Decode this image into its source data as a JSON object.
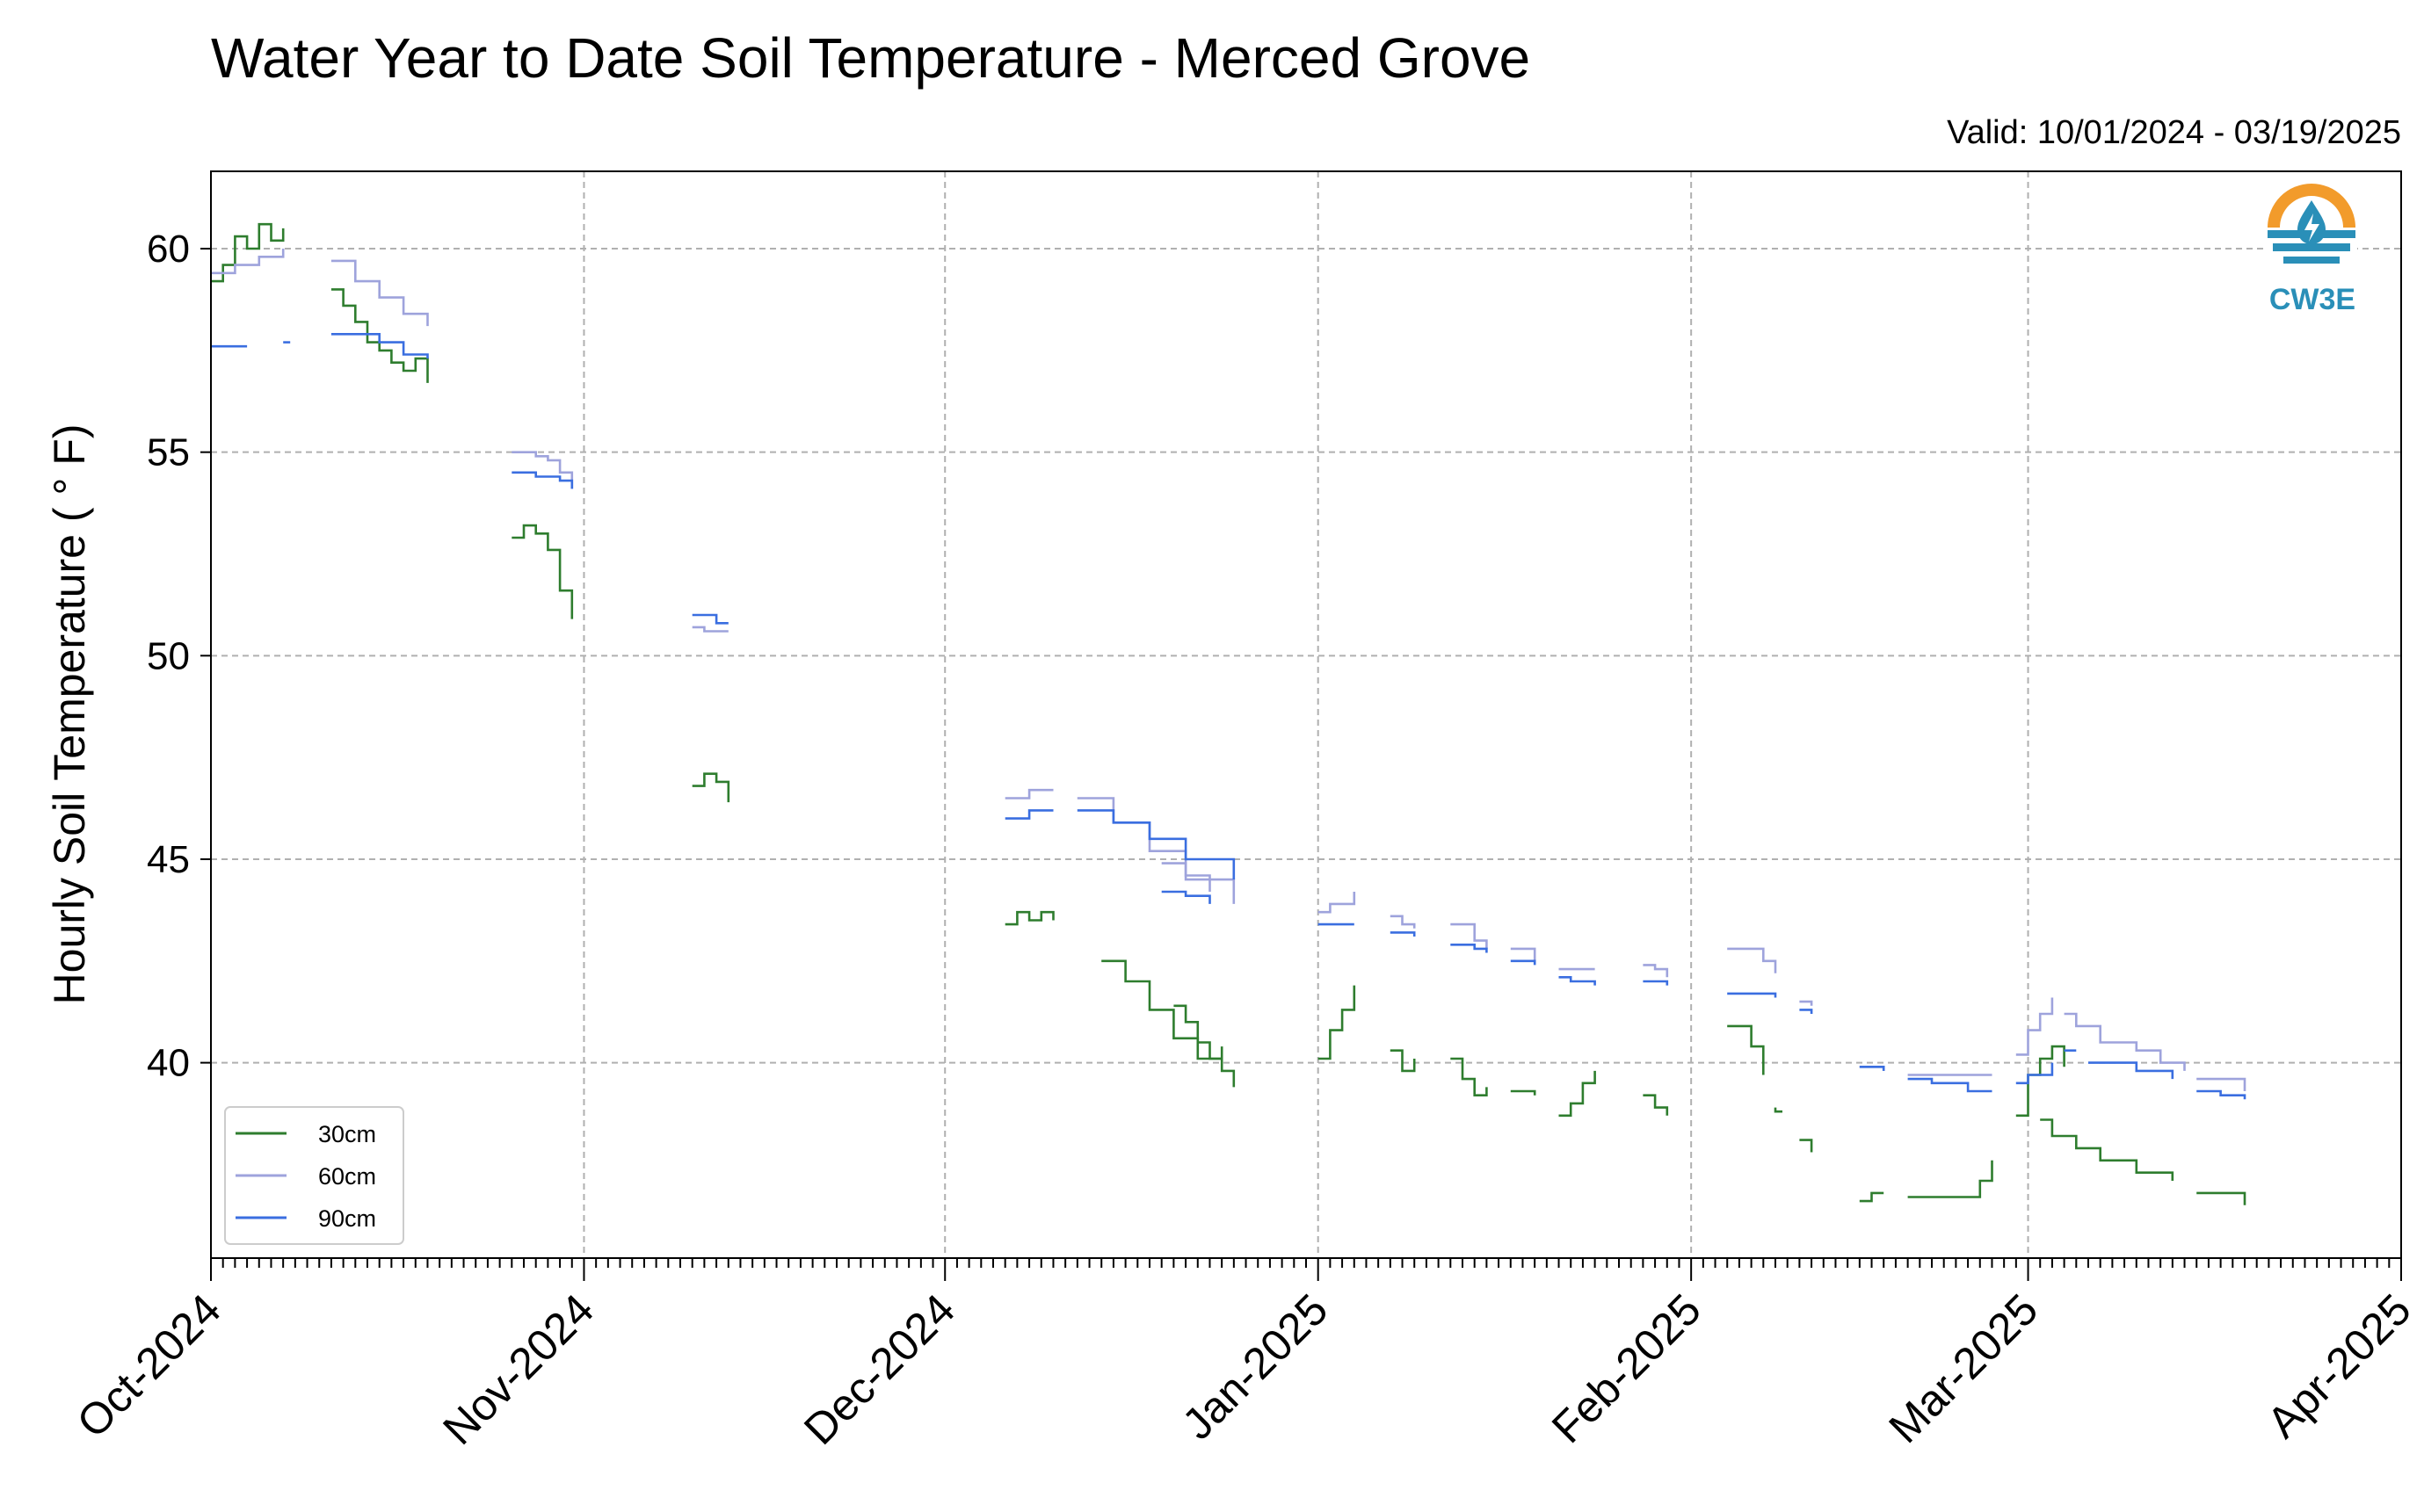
{
  "chart_data": {
    "type": "line",
    "title": "Water Year to Date Soil Temperature - Merced Grove",
    "subtitle": "Valid: 10/01/2024 - 03/19/2025",
    "ylabel": "Hourly Soil Temperature ( ° F)",
    "xlabel": "",
    "ylim": [
      35.2,
      61.9
    ],
    "xlim": [
      "2024-10-01",
      "2025-04-01"
    ],
    "yticks": [
      40,
      45,
      50,
      55,
      60
    ],
    "xticks": [
      "Oct-2024",
      "Nov-2024",
      "Dec-2024",
      "Jan-2025",
      "Feb-2025",
      "Mar-2025",
      "Apr-2025"
    ],
    "grid": true,
    "legend_position": "bottom-left",
    "logo_text": "CW3E",
    "series": [
      {
        "name": "30cm",
        "color": "#2e7d2e",
        "segments": [
          [
            [
              "2024-10-01",
              59.2
            ],
            [
              "2024-10-02",
              59.6
            ],
            [
              "2024-10-03",
              60.3
            ],
            [
              "2024-10-04",
              60.0
            ],
            [
              "2024-10-05",
              60.6
            ],
            [
              "2024-10-06",
              60.2
            ],
            [
              "2024-10-07",
              60.5
            ]
          ],
          [
            [
              "2024-10-11",
              59.0
            ],
            [
              "2024-10-12",
              58.6
            ],
            [
              "2024-10-13",
              58.2
            ],
            [
              "2024-10-14",
              57.7
            ],
            [
              "2024-10-15",
              57.5
            ],
            [
              "2024-10-16",
              57.2
            ],
            [
              "2024-10-17",
              57.0
            ],
            [
              "2024-10-18",
              57.3
            ],
            [
              "2024-10-19",
              56.7
            ]
          ],
          [
            [
              "2024-10-26",
              52.9
            ],
            [
              "2024-10-27",
              53.2
            ],
            [
              "2024-10-28",
              53.0
            ],
            [
              "2024-10-29",
              52.6
            ],
            [
              "2024-10-30",
              51.6
            ],
            [
              "2024-10-31",
              50.9
            ]
          ],
          [
            [
              "2024-11-10",
              46.8
            ],
            [
              "2024-11-11",
              47.1
            ],
            [
              "2024-11-12",
              46.9
            ],
            [
              "2024-11-13",
              46.4
            ]
          ],
          [
            [
              "2024-12-06",
              43.4
            ],
            [
              "2024-12-07",
              43.7
            ],
            [
              "2024-12-08",
              43.5
            ],
            [
              "2024-12-09",
              43.7
            ],
            [
              "2024-12-10",
              43.5
            ]
          ],
          [
            [
              "2024-12-14",
              42.5
            ],
            [
              "2024-12-16",
              42.0
            ],
            [
              "2024-12-18",
              41.3
            ],
            [
              "2024-12-20",
              40.6
            ],
            [
              "2024-12-22",
              40.1
            ],
            [
              "2024-12-24",
              39.8
            ],
            [
              "2024-12-25",
              39.4
            ]
          ],
          [
            [
              "2024-12-20",
              41.4
            ],
            [
              "2024-12-21",
              41.0
            ],
            [
              "2024-12-22",
              40.5
            ],
            [
              "2024-12-23",
              40.1
            ],
            [
              "2024-12-24",
              40.4
            ]
          ],
          [
            [
              "2025-01-01",
              40.1
            ],
            [
              "2025-01-02",
              40.8
            ],
            [
              "2025-01-03",
              41.3
            ],
            [
              "2025-01-04",
              41.9
            ]
          ],
          [
            [
              "2025-01-07",
              40.3
            ],
            [
              "2025-01-08",
              39.8
            ],
            [
              "2025-01-09",
              40.1
            ]
          ],
          [
            [
              "2025-01-12",
              40.1
            ],
            [
              "2025-01-13",
              39.6
            ],
            [
              "2025-01-14",
              39.2
            ],
            [
              "2025-01-15",
              39.4
            ]
          ],
          [
            [
              "2025-01-17",
              39.3
            ],
            [
              "2025-01-19",
              39.2
            ]
          ],
          [
            [
              "2025-01-21",
              38.7
            ],
            [
              "2025-01-22",
              39.0
            ],
            [
              "2025-01-23",
              39.5
            ],
            [
              "2025-01-24",
              39.8
            ]
          ],
          [
            [
              "2025-01-28",
              39.2
            ],
            [
              "2025-01-29",
              38.9
            ],
            [
              "2025-01-30",
              38.7
            ]
          ],
          [
            [
              "2025-02-04",
              40.9
            ],
            [
              "2025-02-05",
              40.9
            ],
            [
              "2025-02-06",
              40.4
            ],
            [
              "2025-02-07",
              39.7
            ]
          ],
          [
            [
              "2025-02-08",
              38.9
            ],
            [
              "2025-02-08",
              38.8
            ]
          ],
          [
            [
              "2025-02-10",
              38.1
            ],
            [
              "2025-02-11",
              37.8
            ]
          ],
          [
            [
              "2025-02-15",
              36.6
            ],
            [
              "2025-02-16",
              36.8
            ],
            [
              "2025-02-17",
              36.8
            ]
          ],
          [
            [
              "2025-02-19",
              36.7
            ],
            [
              "2025-02-24",
              36.7
            ],
            [
              "2025-02-25",
              37.1
            ],
            [
              "2025-02-26",
              37.6
            ]
          ],
          [
            [
              "2025-02-28",
              38.7
            ],
            [
              "2025-03-01",
              39.7
            ],
            [
              "2025-03-02",
              40.1
            ],
            [
              "2025-03-03",
              40.4
            ],
            [
              "2025-03-04",
              39.9
            ]
          ],
          [
            [
              "2025-03-02",
              38.6
            ],
            [
              "2025-03-03",
              38.2
            ],
            [
              "2025-03-05",
              37.9
            ],
            [
              "2025-03-07",
              37.6
            ],
            [
              "2025-03-10",
              37.3
            ],
            [
              "2025-03-13",
              37.1
            ]
          ],
          [
            [
              "2025-03-15",
              36.8
            ],
            [
              "2025-03-17",
              36.8
            ],
            [
              "2025-03-19",
              36.5
            ]
          ]
        ]
      },
      {
        "name": "60cm",
        "color": "#9ea3dc",
        "segments": [
          [
            [
              "2024-10-01",
              59.4
            ],
            [
              "2024-10-03",
              59.6
            ],
            [
              "2024-10-05",
              59.8
            ],
            [
              "2024-10-07",
              60.0
            ]
          ],
          [
            [
              "2024-10-11",
              59.7
            ],
            [
              "2024-10-13",
              59.2
            ],
            [
              "2024-10-15",
              58.8
            ],
            [
              "2024-10-17",
              58.4
            ],
            [
              "2024-10-19",
              58.1
            ]
          ],
          [
            [
              "2024-10-26",
              55.0
            ],
            [
              "2024-10-28",
              54.9
            ],
            [
              "2024-10-29",
              54.8
            ],
            [
              "2024-10-30",
              54.5
            ],
            [
              "2024-10-31",
              54.1
            ]
          ],
          [
            [
              "2024-11-10",
              50.7
            ],
            [
              "2024-11-11",
              50.6
            ],
            [
              "2024-11-13",
              50.6
            ]
          ],
          [
            [
              "2024-12-06",
              46.5
            ],
            [
              "2024-12-08",
              46.7
            ],
            [
              "2024-12-10",
              46.7
            ]
          ],
          [
            [
              "2024-12-12",
              46.5
            ],
            [
              "2024-12-15",
              45.9
            ],
            [
              "2024-12-18",
              45.2
            ],
            [
              "2024-12-21",
              44.5
            ],
            [
              "2024-12-25",
              43.9
            ]
          ],
          [
            [
              "2024-12-19",
              44.9
            ],
            [
              "2024-12-21",
              44.6
            ],
            [
              "2024-12-23",
              44.2
            ]
          ],
          [
            [
              "2025-01-01",
              43.7
            ],
            [
              "2025-01-02",
              43.9
            ],
            [
              "2025-01-04",
              44.2
            ]
          ],
          [
            [
              "2025-01-07",
              43.6
            ],
            [
              "2025-01-08",
              43.4
            ],
            [
              "2025-01-09",
              43.3
            ]
          ],
          [
            [
              "2025-01-12",
              43.4
            ],
            [
              "2025-01-14",
              43.0
            ],
            [
              "2025-01-15",
              42.8
            ]
          ],
          [
            [
              "2025-01-17",
              42.8
            ],
            [
              "2025-01-19",
              42.5
            ]
          ],
          [
            [
              "2025-01-21",
              42.3
            ],
            [
              "2025-01-24",
              42.3
            ]
          ],
          [
            [
              "2025-01-28",
              42.4
            ],
            [
              "2025-01-29",
              42.3
            ],
            [
              "2025-01-30",
              42.1
            ]
          ],
          [
            [
              "2025-02-04",
              42.8
            ],
            [
              "2025-02-06",
              42.8
            ],
            [
              "2025-02-07",
              42.5
            ],
            [
              "2025-02-08",
              42.2
            ]
          ],
          [
            [
              "2025-02-10",
              41.5
            ],
            [
              "2025-02-11",
              41.4
            ]
          ],
          [
            [
              "2025-02-15",
              39.9
            ],
            [
              "2025-02-17",
              39.8
            ]
          ],
          [
            [
              "2025-02-19",
              39.7
            ],
            [
              "2025-02-24",
              39.7
            ],
            [
              "2025-02-26",
              39.7
            ]
          ],
          [
            [
              "2025-02-28",
              40.2
            ],
            [
              "2025-03-01",
              40.8
            ],
            [
              "2025-03-02",
              41.2
            ],
            [
              "2025-03-03",
              41.6
            ]
          ],
          [
            [
              "2025-03-04",
              41.2
            ],
            [
              "2025-03-05",
              40.9
            ],
            [
              "2025-03-07",
              40.5
            ],
            [
              "2025-03-10",
              40.3
            ],
            [
              "2025-03-12",
              40.0
            ],
            [
              "2025-03-14",
              39.8
            ]
          ],
          [
            [
              "2025-03-15",
              39.6
            ],
            [
              "2025-03-17",
              39.6
            ],
            [
              "2025-03-19",
              39.3
            ]
          ]
        ]
      },
      {
        "name": "90cm",
        "color": "#3a6ee0",
        "segments": [
          [
            [
              "2024-10-01",
              57.6
            ],
            [
              "2024-10-04",
              57.6
            ]
          ],
          [
            [
              "2024-10-07",
              57.7
            ],
            [
              "2024-10-07",
              57.7
            ]
          ],
          [
            [
              "2024-10-11",
              57.9
            ],
            [
              "2024-10-13",
              57.9
            ],
            [
              "2024-10-15",
              57.7
            ],
            [
              "2024-10-17",
              57.4
            ],
            [
              "2024-10-19",
              57.3
            ]
          ],
          [
            [
              "2024-10-26",
              54.5
            ],
            [
              "2024-10-28",
              54.4
            ],
            [
              "2024-10-30",
              54.3
            ],
            [
              "2024-10-31",
              54.1
            ]
          ],
          [
            [
              "2024-11-10",
              51.0
            ],
            [
              "2024-11-11",
              51.0
            ],
            [
              "2024-11-12",
              50.8
            ],
            [
              "2024-11-13",
              50.8
            ]
          ],
          [
            [
              "2024-12-06",
              46.0
            ],
            [
              "2024-12-08",
              46.2
            ],
            [
              "2024-12-10",
              46.2
            ]
          ],
          [
            [
              "2024-12-12",
              46.2
            ],
            [
              "2024-12-15",
              45.9
            ],
            [
              "2024-12-18",
              45.5
            ],
            [
              "2024-12-21",
              45.0
            ],
            [
              "2024-12-25",
              44.5
            ]
          ],
          [
            [
              "2024-12-19",
              44.2
            ],
            [
              "2024-12-21",
              44.1
            ],
            [
              "2024-12-23",
              43.9
            ]
          ],
          [
            [
              "2025-01-01",
              43.4
            ],
            [
              "2025-01-02",
              43.4
            ],
            [
              "2025-01-04",
              43.4
            ]
          ],
          [
            [
              "2025-01-07",
              43.2
            ],
            [
              "2025-01-09",
              43.1
            ]
          ],
          [
            [
              "2025-01-12",
              42.9
            ],
            [
              "2025-01-14",
              42.8
            ],
            [
              "2025-01-15",
              42.7
            ]
          ],
          [
            [
              "2025-01-17",
              42.5
            ],
            [
              "2025-01-19",
              42.4
            ]
          ],
          [
            [
              "2025-01-21",
              42.1
            ],
            [
              "2025-01-22",
              42.0
            ],
            [
              "2025-01-24",
              41.9
            ]
          ],
          [
            [
              "2025-01-28",
              42.0
            ],
            [
              "2025-01-30",
              41.9
            ]
          ],
          [
            [
              "2025-02-04",
              41.7
            ],
            [
              "2025-02-07",
              41.7
            ],
            [
              "2025-02-08",
              41.6
            ]
          ],
          [
            [
              "2025-02-10",
              41.3
            ],
            [
              "2025-02-11",
              41.2
            ]
          ],
          [
            [
              "2025-02-15",
              39.9
            ],
            [
              "2025-02-17",
              39.8
            ]
          ],
          [
            [
              "2025-02-19",
              39.6
            ],
            [
              "2025-02-21",
              39.5
            ],
            [
              "2025-02-24",
              39.3
            ],
            [
              "2025-02-26",
              39.3
            ]
          ],
          [
            [
              "2025-02-28",
              39.5
            ],
            [
              "2025-03-01",
              39.7
            ],
            [
              "2025-03-03",
              40.0
            ]
          ],
          [
            [
              "2025-03-04",
              40.3
            ],
            [
              "2025-03-05",
              40.3
            ]
          ],
          [
            [
              "2025-03-06",
              40.0
            ],
            [
              "2025-03-08",
              40.0
            ],
            [
              "2025-03-10",
              39.8
            ],
            [
              "2025-03-13",
              39.6
            ]
          ],
          [
            [
              "2025-03-15",
              39.3
            ],
            [
              "2025-03-17",
              39.2
            ],
            [
              "2025-03-19",
              39.1
            ]
          ]
        ]
      }
    ]
  }
}
